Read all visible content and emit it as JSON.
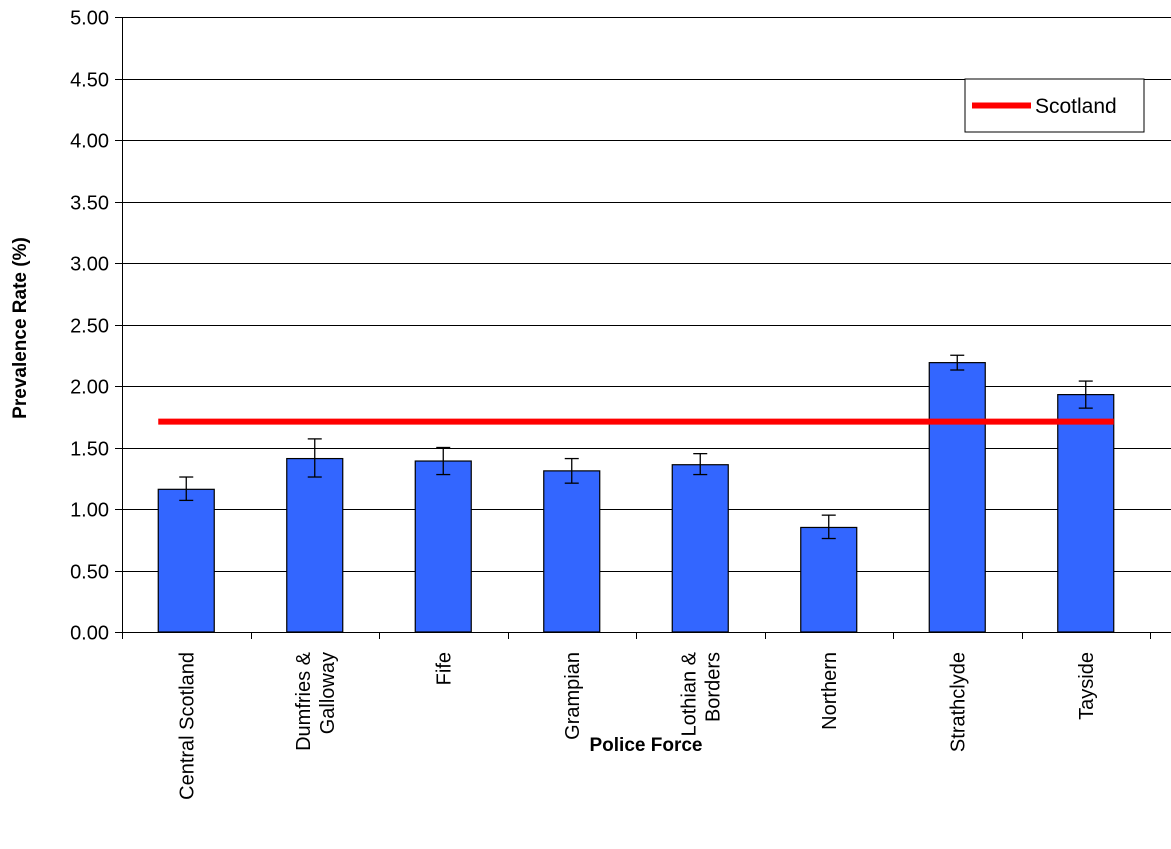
{
  "chart_data": {
    "type": "bar",
    "title": "",
    "xlabel": "Police Force",
    "ylabel": "Prevalence Rate (%)",
    "ylim": [
      0,
      5
    ],
    "yticks": [
      "0.00",
      "0.50",
      "1.00",
      "1.50",
      "2.00",
      "2.50",
      "3.00",
      "3.50",
      "4.00",
      "4.50",
      "5.00"
    ],
    "grid": true,
    "legend_position": "top-right",
    "categories": [
      [
        "Central Scotland"
      ],
      [
        "Dumfries &",
        "Galloway"
      ],
      [
        "Fife"
      ],
      [
        "Grampian"
      ],
      [
        "Lothian &",
        "Borders"
      ],
      [
        "Northern"
      ],
      [
        "Strathclyde"
      ],
      [
        "Tayside"
      ]
    ],
    "series": [
      {
        "values": [
          1.16,
          1.41,
          1.39,
          1.31,
          1.36,
          0.85,
          2.19,
          1.93
        ],
        "error_low": [
          1.07,
          1.26,
          1.28,
          1.21,
          1.28,
          0.76,
          2.13,
          1.82
        ],
        "error_high": [
          1.26,
          1.57,
          1.5,
          1.41,
          1.45,
          0.95,
          2.25,
          2.04
        ],
        "color": "#3366ff"
      }
    ],
    "reference_line": {
      "name": "Scotland",
      "value": 1.71,
      "color": "#ff0000"
    }
  }
}
